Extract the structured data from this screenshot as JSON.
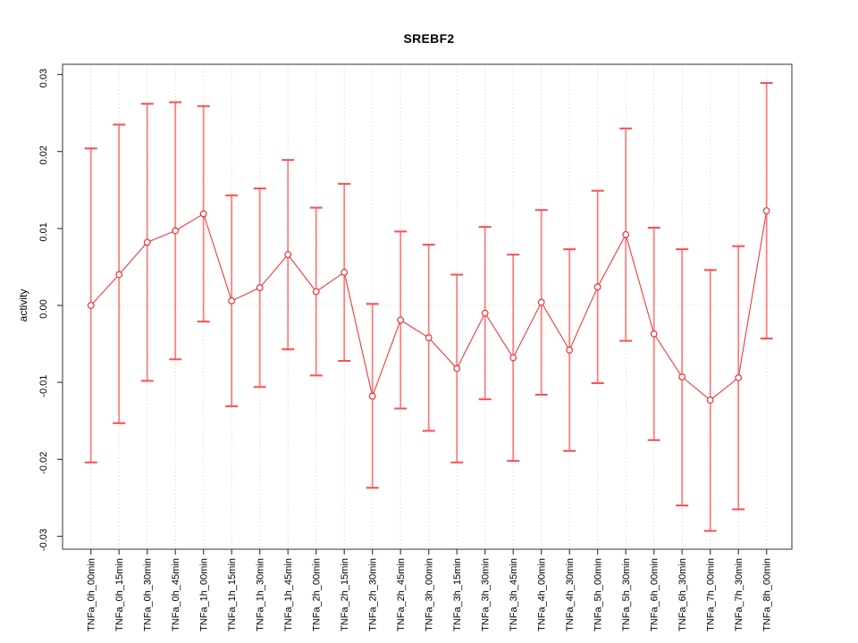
{
  "chart_data": {
    "type": "line",
    "title": "SREBF2",
    "xlabel": "",
    "ylabel": "activity",
    "ylim": [
      -0.03,
      0.03
    ],
    "grid": "vertical-dotted-per-category-plus-zero-line",
    "legend_position": "none",
    "point_marker": "open-circle",
    "yticks": [
      {
        "value": 0.03,
        "label": "0.03"
      },
      {
        "value": 0.02,
        "label": "0.02"
      },
      {
        "value": 0.01,
        "label": "0.01"
      },
      {
        "value": 0.0,
        "label": "0.00"
      },
      {
        "value": -0.01,
        "label": "-0.01"
      },
      {
        "value": -0.02,
        "label": "-0.02"
      },
      {
        "value": -0.03,
        "label": "-0.03"
      }
    ],
    "categories": [
      "TNFa_0h_00min",
      "TNFa_0h_15min",
      "TNFa_0h_30min",
      "TNFa_0h_45min",
      "TNFa_1h_00min",
      "TNFa_1h_15min",
      "TNFa_1h_30min",
      "TNFa_1h_45min",
      "TNFa_2h_00min",
      "TNFa_2h_15min",
      "TNFa_2h_30min",
      "TNFa_2h_45min",
      "TNFa_3h_00min",
      "TNFa_3h_15min",
      "TNFa_3h_30min",
      "TNFa_3h_45min",
      "TNFa_4h_00min",
      "TNFa_4h_30min",
      "TNFa_5h_00min",
      "TNFa_5h_30min",
      "TNFa_6h_00min",
      "TNFa_6h_30min",
      "TNFa_7h_00min",
      "TNFa_7h_30min",
      "TNFa_8h_00min"
    ],
    "values": [
      0.0,
      0.004,
      0.0082,
      0.0097,
      0.0119,
      0.0006,
      0.0023,
      0.0066,
      0.0018,
      0.0043,
      -0.0118,
      -0.0019,
      -0.0042,
      -0.0082,
      -0.001,
      -0.0068,
      0.0004,
      -0.0058,
      0.0024,
      0.0092,
      -0.0037,
      -0.0093,
      -0.0123,
      -0.0094,
      0.0123
    ],
    "err_lo": [
      -0.0204,
      -0.0153,
      -0.0098,
      -0.007,
      -0.0021,
      -0.0131,
      -0.0106,
      -0.0057,
      -0.0091,
      -0.0072,
      -0.0237,
      -0.0134,
      -0.0163,
      -0.0204,
      -0.0122,
      -0.0202,
      -0.0116,
      -0.0189,
      -0.0101,
      -0.0046,
      -0.0175,
      -0.026,
      -0.0293,
      -0.0265,
      -0.0043
    ],
    "err_hi": [
      0.0204,
      0.0235,
      0.0262,
      0.0264,
      0.0259,
      0.0143,
      0.0152,
      0.0189,
      0.0127,
      0.0158,
      0.0002,
      0.0096,
      0.0079,
      0.004,
      0.0102,
      0.0066,
      0.0124,
      0.0073,
      0.0149,
      0.023,
      0.0101,
      0.0073,
      0.0046,
      0.0077,
      0.0289
    ],
    "colors": {
      "series": "#ee3b3b",
      "errorbar": "#ff6b6b",
      "errorbar_cap": "#ff4d4d",
      "marker": "#e63333",
      "gridline": "#dcdcdc",
      "axis": "#444444",
      "box": "#555555",
      "background": "#ffffff"
    }
  }
}
